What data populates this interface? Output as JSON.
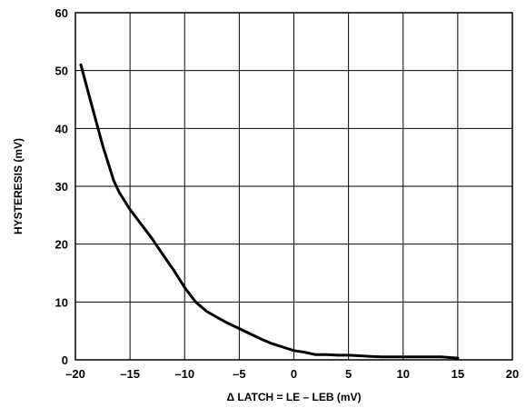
{
  "chart_data": {
    "type": "line",
    "title": "",
    "xlabel": "Δ LATCH = LE – LEB (mV)",
    "ylabel": "HYSTERESIS (mV)",
    "xlim": [
      -20,
      20
    ],
    "ylim": [
      0,
      60
    ],
    "x_ticks": [
      -20,
      -15,
      -10,
      -5,
      0,
      5,
      10,
      15,
      20
    ],
    "y_ticks": [
      0,
      10,
      20,
      30,
      40,
      50,
      60
    ],
    "x_tick_labels": [
      "–20",
      "–15",
      "–10",
      "–5",
      "0",
      "5",
      "10",
      "15",
      "20"
    ],
    "y_tick_labels": [
      "0",
      "10",
      "20",
      "30",
      "40",
      "50",
      "60"
    ],
    "grid": true,
    "legend": "none",
    "line_color": "#000000",
    "series": [
      {
        "x": [
          -19.5,
          -18.5,
          -17.5,
          -16.5,
          -16.0,
          -15.0,
          -14.0,
          -13.0,
          -12.0,
          -11.0,
          -10.0,
          -9.0,
          -8.0,
          -7.0,
          -6.0,
          -5.0,
          -4.0,
          -3.0,
          -2.0,
          -1.0,
          0.0,
          1.0,
          2.0,
          3.0,
          4.0,
          5.0,
          6.0,
          7.0,
          8.0,
          10.0,
          12.0,
          13.5,
          15.0
        ],
        "y": [
          51.0,
          44.0,
          37.0,
          31.0,
          29.0,
          26.0,
          23.5,
          21.0,
          18.2,
          15.5,
          12.5,
          10.0,
          8.4,
          7.3,
          6.3,
          5.4,
          4.5,
          3.6,
          2.8,
          2.2,
          1.6,
          1.3,
          0.9,
          0.9,
          0.8,
          0.8,
          0.7,
          0.6,
          0.5,
          0.5,
          0.5,
          0.5,
          0.3
        ]
      }
    ]
  }
}
